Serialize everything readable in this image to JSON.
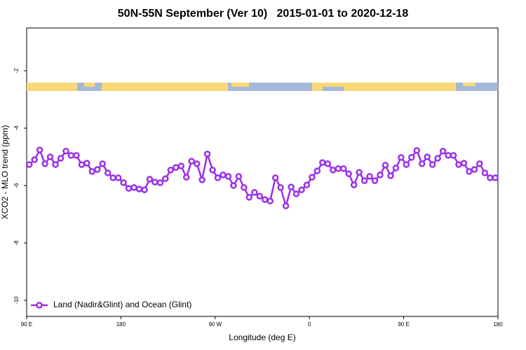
{
  "chart_data": {
    "type": "line",
    "title": "50N-55N September (Ver 10)   2015-01-01 to 2020-12-18",
    "x_label": "Longitude (deg E)",
    "y_label": "XCO2 - MLO trend (ppm)",
    "xlim": [
      90,
      540
    ],
    "ylim": [
      -10.56,
      -0.51
    ],
    "xticks": [
      {
        "value": 90,
        "label": "90 E"
      },
      180,
      {
        "value": 270,
        "label": "90 W"
      },
      {
        "value": 360,
        "label": "0"
      },
      {
        "value": 450,
        "label": "90 E"
      },
      {
        "value": 540,
        "label": "180"
      }
    ],
    "yticks": [
      -2,
      -4,
      -6,
      -8,
      -10
    ],
    "legend": "bottom-left",
    "x": [
      92.5,
      97.5,
      102.5,
      107.5,
      112.5,
      117.5,
      122.5,
      127.5,
      132.5,
      137.5,
      142.5,
      147.5,
      152.5,
      157.5,
      162.5,
      167.5,
      172.5,
      177.5,
      182.5,
      187.5,
      192.5,
      197.5,
      202.5,
      207.5,
      212.5,
      217.5,
      222.5,
      227.5,
      232.5,
      237.5,
      242.5,
      247.5,
      252.5,
      257.5,
      262.5,
      267.5,
      272.5,
      277.5,
      282.5,
      287.5,
      292.5,
      297.5,
      302.5,
      307.5,
      312.5,
      317.5,
      322.5,
      327.5,
      332.5,
      337.5,
      342.5,
      347.5,
      352.5,
      357.5,
      362.5,
      367.5,
      372.5,
      377.5,
      382.5,
      387.5,
      392.5,
      397.5,
      402.5,
      407.5,
      412.5,
      417.5,
      422.5,
      427.5,
      432.5,
      437.5,
      442.5,
      447.5,
      452.5,
      457.5,
      462.5,
      467.5,
      472.5,
      477.5,
      482.5,
      487.5,
      492.5,
      497.5,
      502.5,
      507.5,
      512.5,
      517.5,
      522.5,
      527.5,
      532.5,
      537.5
    ],
    "series": [
      {
        "name": "Land (Nadir&Glint) and Ocean (Glint)",
        "color": "#9b30e8",
        "values": [
          -5.27,
          -5.1,
          -4.76,
          -5.24,
          -5.0,
          -5.27,
          -5.05,
          -4.8,
          -4.95,
          -4.95,
          -5.27,
          -5.22,
          -5.51,
          -5.44,
          -5.24,
          -5.56,
          -5.73,
          -5.73,
          -5.9,
          -6.1,
          -6.07,
          -6.12,
          -6.15,
          -5.78,
          -5.88,
          -5.9,
          -5.76,
          -5.46,
          -5.37,
          -5.32,
          -5.71,
          -5.15,
          -5.24,
          -5.8,
          -4.9,
          -5.46,
          -5.73,
          -5.63,
          -5.68,
          -6.0,
          -5.68,
          -6.07,
          -6.41,
          -6.24,
          -6.37,
          -6.49,
          -6.54,
          -5.73,
          -6.07,
          -6.71,
          -6.05,
          -6.29,
          -6.15,
          -5.98,
          -5.71,
          -5.49,
          -5.2,
          -5.24,
          -5.46,
          -5.41,
          -5.41,
          -5.59,
          -5.98,
          -5.54,
          -5.83,
          -5.68,
          -5.83,
          -5.63,
          -5.29,
          -5.66,
          -5.39,
          -5.02,
          -5.27,
          -5.02,
          -4.78,
          -5.24,
          -5.0,
          -5.27,
          -5.05,
          -4.8,
          -4.95,
          -4.95,
          -5.27,
          -5.22,
          -5.51,
          -5.44,
          -5.24,
          -5.56,
          -5.73,
          -5.73
        ]
      }
    ]
  }
}
